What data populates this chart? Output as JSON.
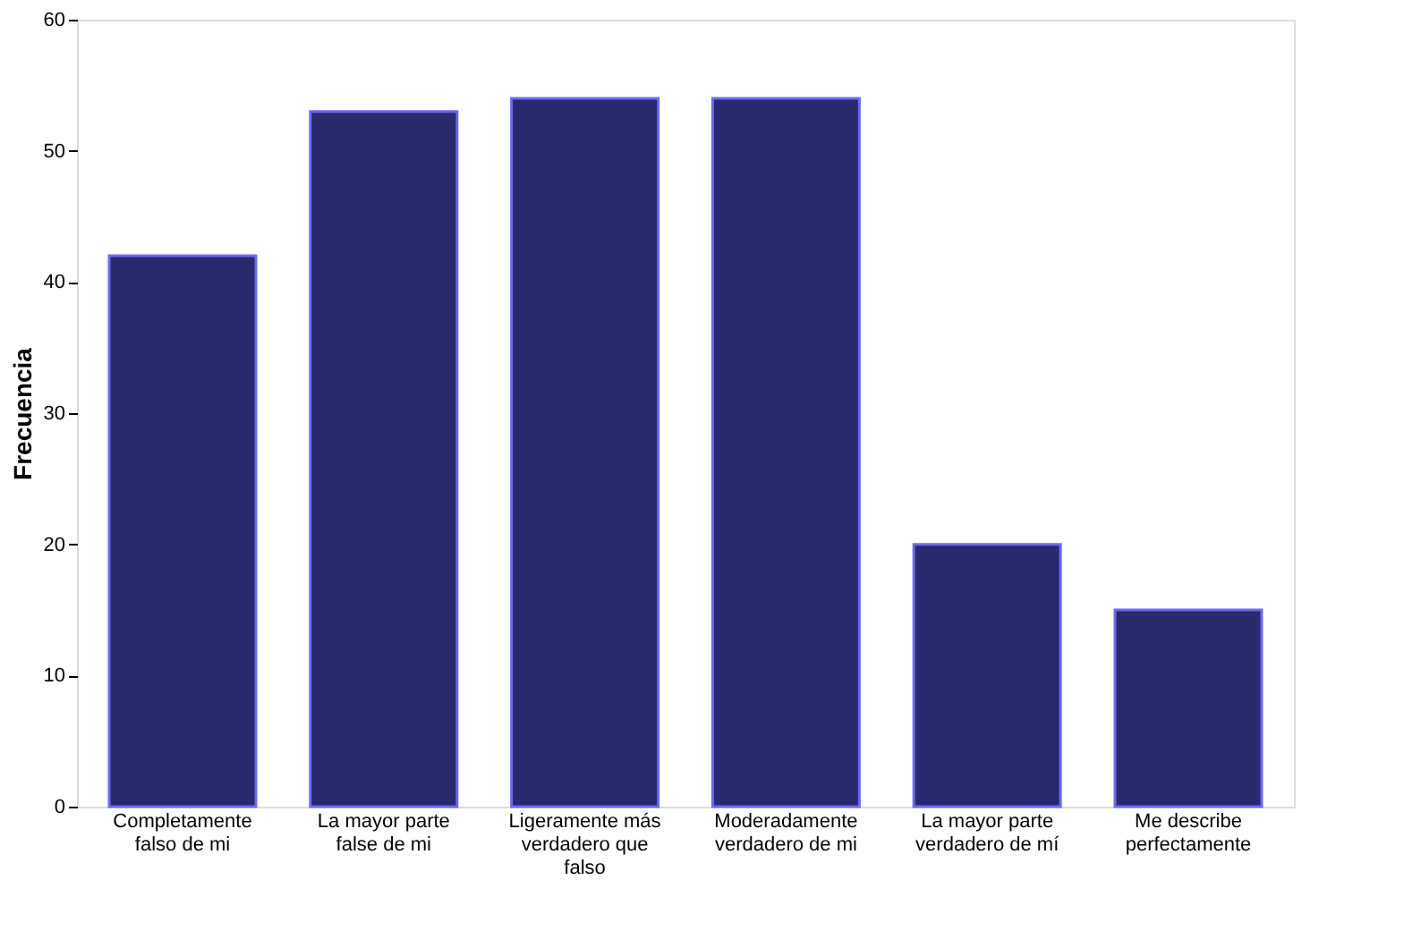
{
  "chart_data": {
    "type": "bar",
    "ylabel": "Frecuencia",
    "categories": [
      "Completamente falso de mi",
      "La mayor parte false de mi",
      "Ligeramente más verdadero que falso",
      "Moderadamente verdadero de mi",
      "La mayor parte verdadero de mí",
      "Me describe perfectamente"
    ],
    "values": [
      42,
      53,
      54,
      54,
      20,
      15
    ],
    "color": "#29296e",
    "ylim": [
      0,
      60
    ],
    "yticks": [
      0,
      10,
      20,
      30,
      40,
      50,
      60
    ],
    "grid": false
  }
}
